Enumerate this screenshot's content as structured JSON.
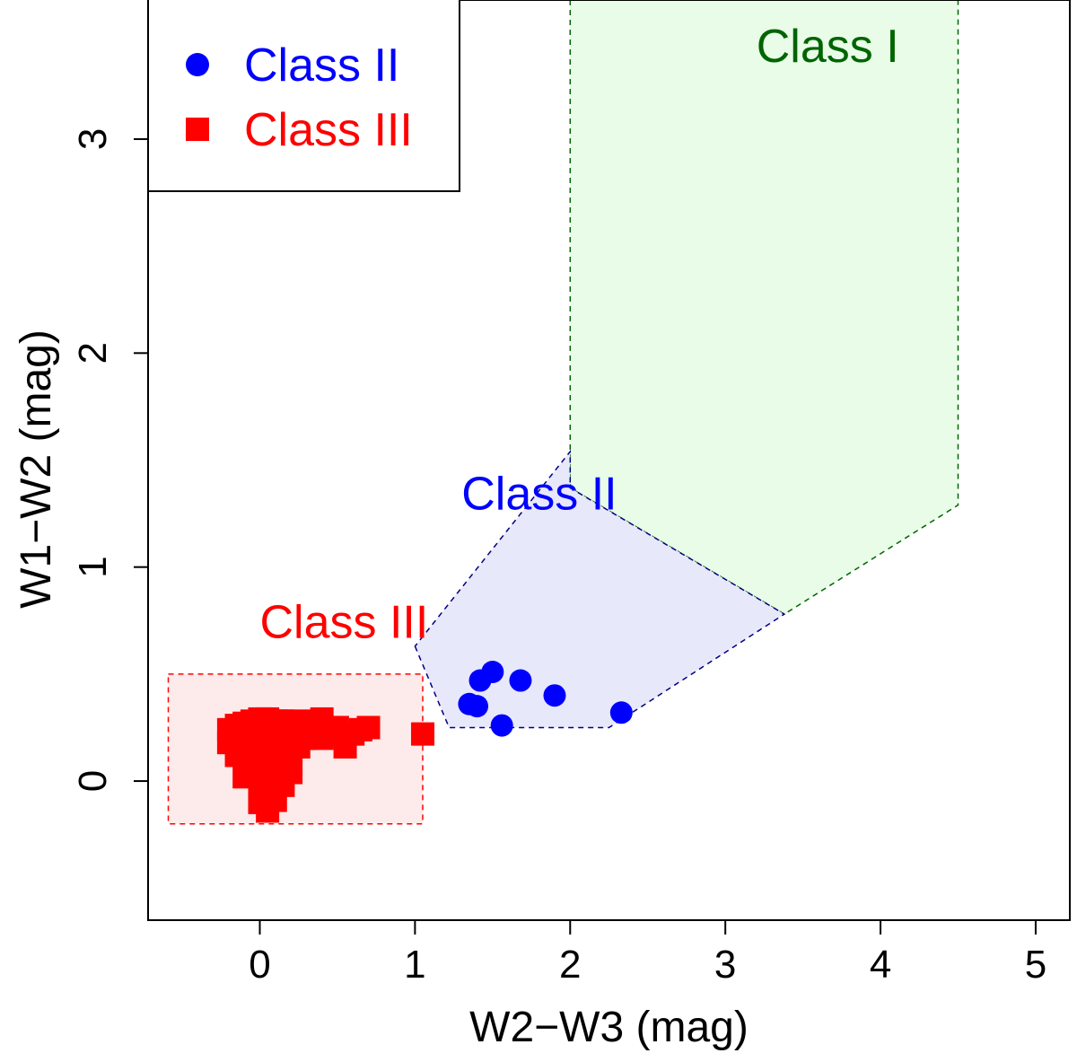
{
  "chart_data": {
    "type": "scatter",
    "title": "",
    "xlabel": "W2−W3 (mag)",
    "ylabel": "W1−W2 (mag)",
    "xlim": [
      -0.72,
      5.22
    ],
    "ylim": [
      -0.65,
      3.65
    ],
    "xticks": [
      "0",
      "1",
      "2",
      "3",
      "4",
      "5"
    ],
    "yticks": [
      "0",
      "1",
      "2",
      "3"
    ],
    "grid": false,
    "legend": {
      "position": "top-left",
      "entries": [
        {
          "name": "Class II",
          "marker": "circle",
          "color": "#0000ff"
        },
        {
          "name": "Class III",
          "marker": "square",
          "color": "#ff0000"
        }
      ]
    },
    "regions": [
      {
        "label": "Class I",
        "label_color": "#006400",
        "fill": "#e8fce8",
        "stroke": "#006400",
        "polygon": [
          [
            2.0,
            3.65
          ],
          [
            2.0,
            1.37
          ],
          [
            3.38,
            0.78
          ],
          [
            4.5,
            1.29
          ],
          [
            4.5,
            3.65
          ]
        ],
        "label_pos": [
          3.2,
          3.36
        ]
      },
      {
        "label": "Class II",
        "label_color": "#0000ff",
        "fill": "#e8e8fb",
        "stroke": "#000080",
        "polygon": [
          [
            1.0,
            0.63
          ],
          [
            1.22,
            0.25
          ],
          [
            2.25,
            0.25
          ],
          [
            3.38,
            0.78
          ],
          [
            2.0,
            1.37
          ],
          [
            2.0,
            1.54
          ]
        ],
        "label_pos": [
          1.3,
          1.27
        ]
      },
      {
        "label": "Class III",
        "label_color": "#ff0000",
        "fill": "#fdeaea",
        "stroke": "#ff0000",
        "polygon": [
          [
            -0.59,
            0.5
          ],
          [
            1.05,
            0.5
          ],
          [
            1.05,
            -0.2
          ],
          [
            -0.59,
            -0.2
          ]
        ],
        "label_pos": [
          0.0,
          0.67
        ]
      }
    ],
    "series": [
      {
        "name": "Class II",
        "marker": "circle",
        "color": "#0000ff",
        "x": [
          1.35,
          1.4,
          1.42,
          1.5,
          1.56,
          1.68,
          1.9,
          2.33
        ],
        "y": [
          0.36,
          0.35,
          0.47,
          0.51,
          0.26,
          0.47,
          0.4,
          0.32
        ]
      },
      {
        "name": "Class III",
        "marker": "square",
        "color": "#ff0000",
        "x": [
          -0.2,
          -0.15,
          -0.1,
          -0.05,
          0.0,
          0.05,
          0.1,
          0.15,
          0.2,
          0.25,
          0.3,
          0.35,
          0.4,
          0.45,
          0.5,
          0.55,
          0.6,
          0.65,
          0.7,
          -0.2,
          -0.1,
          0.0,
          0.1,
          0.2,
          0.3,
          0.4,
          -0.15,
          -0.05,
          0.05,
          0.15,
          0.25,
          0.0,
          0.1,
          0.2,
          -0.1,
          0.0,
          0.1,
          0.2,
          0.0,
          0.05,
          0.15,
          0.0,
          0.1,
          0.05,
          0.55,
          1.05
        ],
        "y": [
          0.24,
          0.26,
          0.27,
          0.28,
          0.29,
          0.29,
          0.28,
          0.28,
          0.28,
          0.27,
          0.26,
          0.28,
          0.29,
          0.25,
          0.25,
          0.22,
          0.22,
          0.24,
          0.25,
          0.18,
          0.18,
          0.19,
          0.19,
          0.19,
          0.2,
          0.2,
          0.12,
          0.13,
          0.14,
          0.13,
          0.16,
          0.08,
          0.08,
          0.08,
          0.02,
          0.03,
          0.03,
          0.04,
          -0.04,
          -0.03,
          -0.02,
          -0.1,
          -0.09,
          -0.14,
          0.16,
          0.22
        ]
      }
    ]
  }
}
